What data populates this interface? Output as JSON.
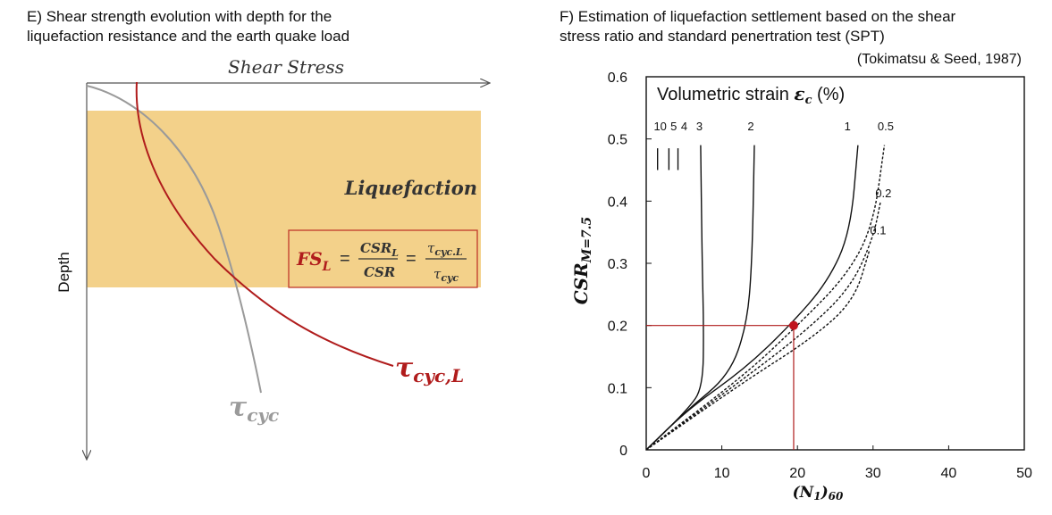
{
  "panel_e": {
    "title_line1": "E) Shear strength evolution with depth for the",
    "title_line2": "liquefaction resistance and the earth quake load",
    "x_axis_label": "Shear Stress",
    "y_axis_label": "Depth",
    "zone_label": "Liquefaction",
    "fs_lhs": "FS",
    "fs_lhs_sub": "L",
    "fs_eq1": "=",
    "fs_num1": "CSR",
    "fs_num1_sub": "L",
    "fs_den1": "CSR",
    "fs_eq2": "=",
    "fs_num2": "τ",
    "fs_num2_sub": "cyc.L",
    "fs_den2": "τ",
    "fs_den2_sub": "cyc",
    "curve_resistance_label": "τ",
    "curve_resistance_sub": "cyc,L",
    "curve_load_label": "τ",
    "curve_load_sub": "cyc",
    "colors": {
      "zone": "#f3d18a",
      "resistance": "#b01c1c",
      "load": "#9a9a9a",
      "formula_box": "#c0392b"
    }
  },
  "panel_f": {
    "title_line1": "F) Estimation of liquefaction settlement based on the shear",
    "title_line2": "stress ratio and standard penertration test (SPT)",
    "reference": "(Tokimatsu & Seed, 1987)",
    "legend_title": "Volumetric strain ",
    "legend_symbol": "ε",
    "legend_symbol_sub": "c",
    "legend_unit": " (%)",
    "y_axis_label": "CSR",
    "y_axis_sub": "M=7.5",
    "x_axis_label": "(N",
    "x_axis_sub": "1",
    "x_axis_label_end": ")",
    "x_axis_sub2": "60",
    "x_ticks": [
      "0",
      "10",
      "20",
      "30",
      "40",
      "50"
    ],
    "y_ticks": [
      "0",
      "0.1",
      "0.2",
      "0.3",
      "0.4",
      "0.5",
      "0.6"
    ],
    "curve_labels_top": [
      "10",
      "5",
      "4",
      "3",
      "2",
      "1",
      "0.5"
    ],
    "curve_labels_side": [
      "0.2",
      "0.1"
    ],
    "example_point": {
      "x": 19.5,
      "y": 0.2
    },
    "colors": {
      "guide": "#b01c1c",
      "point": "#c0141e"
    }
  },
  "chart_data": {
    "type": "line",
    "x_range": [
      0,
      50
    ],
    "y_range": [
      0,
      0.6
    ],
    "xlabel": "(N1)60",
    "ylabel": "CSR M=7.5",
    "title": "Volumetric strain εc (%)",
    "series": [
      {
        "name": "10",
        "values": [
          [
            1.5,
            0.485
          ],
          [
            1.5,
            0.45
          ]
        ]
      },
      {
        "name": "5",
        "values": [
          [
            3,
            0.485
          ],
          [
            3,
            0.45
          ]
        ]
      },
      {
        "name": "4",
        "values": [
          [
            4.2,
            0.485
          ],
          [
            4.2,
            0.45
          ]
        ]
      },
      {
        "name": "3",
        "values": [
          [
            0,
            0
          ],
          [
            5.5,
            0.065
          ],
          [
            7.5,
            0.1
          ],
          [
            7.6,
            0.2
          ],
          [
            7.4,
            0.3
          ],
          [
            7.2,
            0.49
          ]
        ]
      },
      {
        "name": "2",
        "values": [
          [
            0,
            0
          ],
          [
            5.5,
            0.065
          ],
          [
            11,
            0.12
          ],
          [
            13.3,
            0.2
          ],
          [
            14,
            0.3
          ],
          [
            14.3,
            0.49
          ]
        ]
      },
      {
        "name": "1",
        "values": [
          [
            0,
            0
          ],
          [
            5.5,
            0.065
          ],
          [
            13,
            0.13
          ],
          [
            19,
            0.2
          ],
          [
            24,
            0.27
          ],
          [
            27,
            0.35
          ],
          [
            28,
            0.49
          ]
        ]
      },
      {
        "name": "0.5",
        "values": [
          [
            0,
            0
          ],
          [
            13,
            0.12
          ],
          [
            20,
            0.2
          ],
          [
            26.5,
            0.28
          ],
          [
            30,
            0.36
          ],
          [
            31.5,
            0.49
          ]
        ]
      },
      {
        "name": "0.2",
        "values": [
          [
            0,
            0
          ],
          [
            13,
            0.115
          ],
          [
            21,
            0.19
          ],
          [
            27,
            0.26
          ],
          [
            30,
            0.34
          ],
          [
            31,
            0.4
          ]
        ]
      },
      {
        "name": "0.1",
        "values": [
          [
            0,
            0
          ],
          [
            13,
            0.11
          ],
          [
            22,
            0.18
          ],
          [
            27.5,
            0.24
          ],
          [
            29.5,
            0.32
          ]
        ]
      }
    ]
  }
}
